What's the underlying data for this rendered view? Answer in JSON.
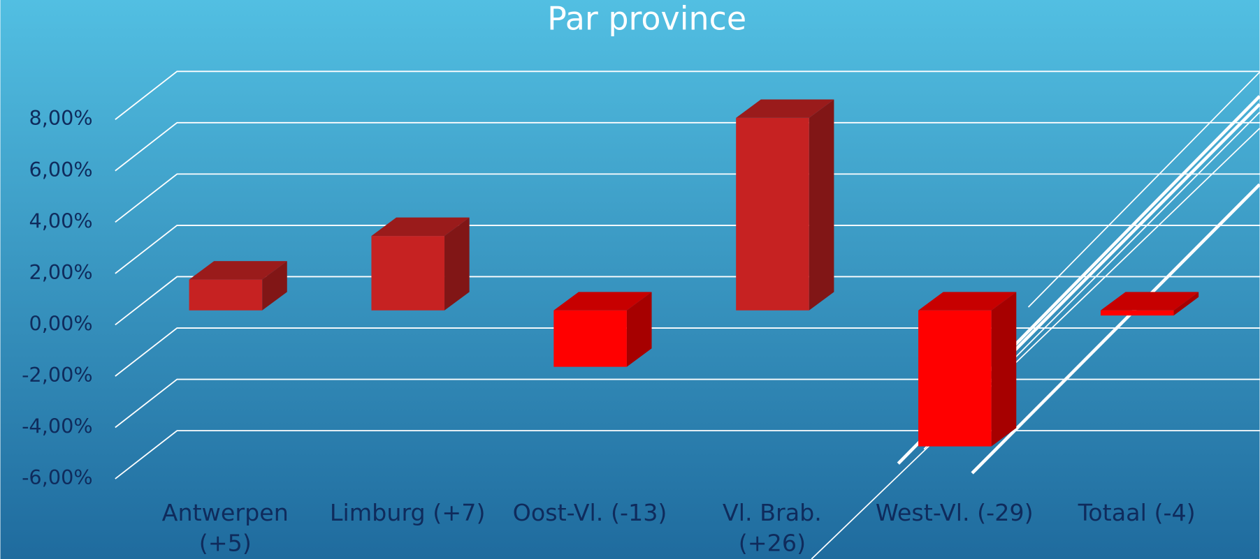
{
  "chart_data": {
    "type": "bar3d",
    "title": "Par province",
    "categories": [
      "Antwerpen (+5)",
      "Limburg (+7)",
      "Oost-Vl. (-13)",
      "Vl. Brab. (+26)",
      "West-Vl.  (-29)",
      "Totaal (-4)"
    ],
    "values": [
      1.2,
      2.9,
      -2.2,
      7.5,
      -5.3,
      -0.2
    ],
    "colors": [
      "#c62222",
      "#c62222",
      "#ff0000",
      "#c62222",
      "#ff0000",
      "#ff0000"
    ],
    "ylim": [
      -6,
      8
    ],
    "yticks": [
      {
        "value": -6,
        "label": "-6,00%"
      },
      {
        "value": -4,
        "label": "-4,00%"
      },
      {
        "value": -2,
        "label": "-2,00%"
      },
      {
        "value": 0,
        "label": "0,00%"
      },
      {
        "value": 2,
        "label": "2,00%"
      },
      {
        "value": 4,
        "label": "4,00%"
      },
      {
        "value": 6,
        "label": "6,00%"
      },
      {
        "value": 8,
        "label": "8,00%"
      }
    ],
    "grid": true
  }
}
